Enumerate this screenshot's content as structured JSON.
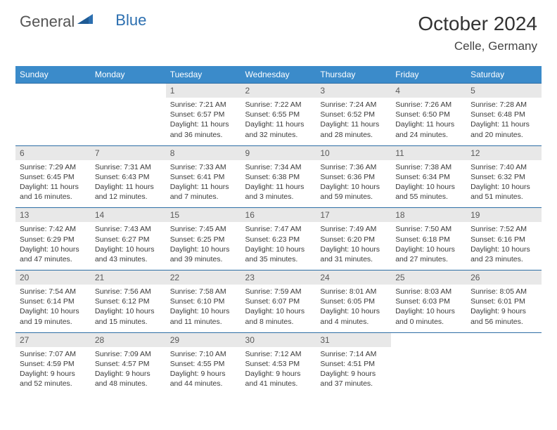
{
  "logo": {
    "word1": "General",
    "word2": "Blue"
  },
  "title": "October 2024",
  "location": "Celle, Germany",
  "colors": {
    "header_bg": "#3b8bca",
    "header_text": "#ffffff",
    "daynum_bg": "#e8e8e8",
    "cell_border": "#2e6ea5",
    "logo_gray": "#545454",
    "logo_blue": "#2c6fb0"
  },
  "weekdays": [
    "Sunday",
    "Monday",
    "Tuesday",
    "Wednesday",
    "Thursday",
    "Friday",
    "Saturday"
  ],
  "weeks": [
    [
      null,
      null,
      {
        "n": "1",
        "sr": "Sunrise: 7:21 AM",
        "ss": "Sunset: 6:57 PM",
        "dl": "Daylight: 11 hours and 36 minutes."
      },
      {
        "n": "2",
        "sr": "Sunrise: 7:22 AM",
        "ss": "Sunset: 6:55 PM",
        "dl": "Daylight: 11 hours and 32 minutes."
      },
      {
        "n": "3",
        "sr": "Sunrise: 7:24 AM",
        "ss": "Sunset: 6:52 PM",
        "dl": "Daylight: 11 hours and 28 minutes."
      },
      {
        "n": "4",
        "sr": "Sunrise: 7:26 AM",
        "ss": "Sunset: 6:50 PM",
        "dl": "Daylight: 11 hours and 24 minutes."
      },
      {
        "n": "5",
        "sr": "Sunrise: 7:28 AM",
        "ss": "Sunset: 6:48 PM",
        "dl": "Daylight: 11 hours and 20 minutes."
      }
    ],
    [
      {
        "n": "6",
        "sr": "Sunrise: 7:29 AM",
        "ss": "Sunset: 6:45 PM",
        "dl": "Daylight: 11 hours and 16 minutes."
      },
      {
        "n": "7",
        "sr": "Sunrise: 7:31 AM",
        "ss": "Sunset: 6:43 PM",
        "dl": "Daylight: 11 hours and 12 minutes."
      },
      {
        "n": "8",
        "sr": "Sunrise: 7:33 AM",
        "ss": "Sunset: 6:41 PM",
        "dl": "Daylight: 11 hours and 7 minutes."
      },
      {
        "n": "9",
        "sr": "Sunrise: 7:34 AM",
        "ss": "Sunset: 6:38 PM",
        "dl": "Daylight: 11 hours and 3 minutes."
      },
      {
        "n": "10",
        "sr": "Sunrise: 7:36 AM",
        "ss": "Sunset: 6:36 PM",
        "dl": "Daylight: 10 hours and 59 minutes."
      },
      {
        "n": "11",
        "sr": "Sunrise: 7:38 AM",
        "ss": "Sunset: 6:34 PM",
        "dl": "Daylight: 10 hours and 55 minutes."
      },
      {
        "n": "12",
        "sr": "Sunrise: 7:40 AM",
        "ss": "Sunset: 6:32 PM",
        "dl": "Daylight: 10 hours and 51 minutes."
      }
    ],
    [
      {
        "n": "13",
        "sr": "Sunrise: 7:42 AM",
        "ss": "Sunset: 6:29 PM",
        "dl": "Daylight: 10 hours and 47 minutes."
      },
      {
        "n": "14",
        "sr": "Sunrise: 7:43 AM",
        "ss": "Sunset: 6:27 PM",
        "dl": "Daylight: 10 hours and 43 minutes."
      },
      {
        "n": "15",
        "sr": "Sunrise: 7:45 AM",
        "ss": "Sunset: 6:25 PM",
        "dl": "Daylight: 10 hours and 39 minutes."
      },
      {
        "n": "16",
        "sr": "Sunrise: 7:47 AM",
        "ss": "Sunset: 6:23 PM",
        "dl": "Daylight: 10 hours and 35 minutes."
      },
      {
        "n": "17",
        "sr": "Sunrise: 7:49 AM",
        "ss": "Sunset: 6:20 PM",
        "dl": "Daylight: 10 hours and 31 minutes."
      },
      {
        "n": "18",
        "sr": "Sunrise: 7:50 AM",
        "ss": "Sunset: 6:18 PM",
        "dl": "Daylight: 10 hours and 27 minutes."
      },
      {
        "n": "19",
        "sr": "Sunrise: 7:52 AM",
        "ss": "Sunset: 6:16 PM",
        "dl": "Daylight: 10 hours and 23 minutes."
      }
    ],
    [
      {
        "n": "20",
        "sr": "Sunrise: 7:54 AM",
        "ss": "Sunset: 6:14 PM",
        "dl": "Daylight: 10 hours and 19 minutes."
      },
      {
        "n": "21",
        "sr": "Sunrise: 7:56 AM",
        "ss": "Sunset: 6:12 PM",
        "dl": "Daylight: 10 hours and 15 minutes."
      },
      {
        "n": "22",
        "sr": "Sunrise: 7:58 AM",
        "ss": "Sunset: 6:10 PM",
        "dl": "Daylight: 10 hours and 11 minutes."
      },
      {
        "n": "23",
        "sr": "Sunrise: 7:59 AM",
        "ss": "Sunset: 6:07 PM",
        "dl": "Daylight: 10 hours and 8 minutes."
      },
      {
        "n": "24",
        "sr": "Sunrise: 8:01 AM",
        "ss": "Sunset: 6:05 PM",
        "dl": "Daylight: 10 hours and 4 minutes."
      },
      {
        "n": "25",
        "sr": "Sunrise: 8:03 AM",
        "ss": "Sunset: 6:03 PM",
        "dl": "Daylight: 10 hours and 0 minutes."
      },
      {
        "n": "26",
        "sr": "Sunrise: 8:05 AM",
        "ss": "Sunset: 6:01 PM",
        "dl": "Daylight: 9 hours and 56 minutes."
      }
    ],
    [
      {
        "n": "27",
        "sr": "Sunrise: 7:07 AM",
        "ss": "Sunset: 4:59 PM",
        "dl": "Daylight: 9 hours and 52 minutes."
      },
      {
        "n": "28",
        "sr": "Sunrise: 7:09 AM",
        "ss": "Sunset: 4:57 PM",
        "dl": "Daylight: 9 hours and 48 minutes."
      },
      {
        "n": "29",
        "sr": "Sunrise: 7:10 AM",
        "ss": "Sunset: 4:55 PM",
        "dl": "Daylight: 9 hours and 44 minutes."
      },
      {
        "n": "30",
        "sr": "Sunrise: 7:12 AM",
        "ss": "Sunset: 4:53 PM",
        "dl": "Daylight: 9 hours and 41 minutes."
      },
      {
        "n": "31",
        "sr": "Sunrise: 7:14 AM",
        "ss": "Sunset: 4:51 PM",
        "dl": "Daylight: 9 hours and 37 minutes."
      },
      null,
      null
    ]
  ]
}
